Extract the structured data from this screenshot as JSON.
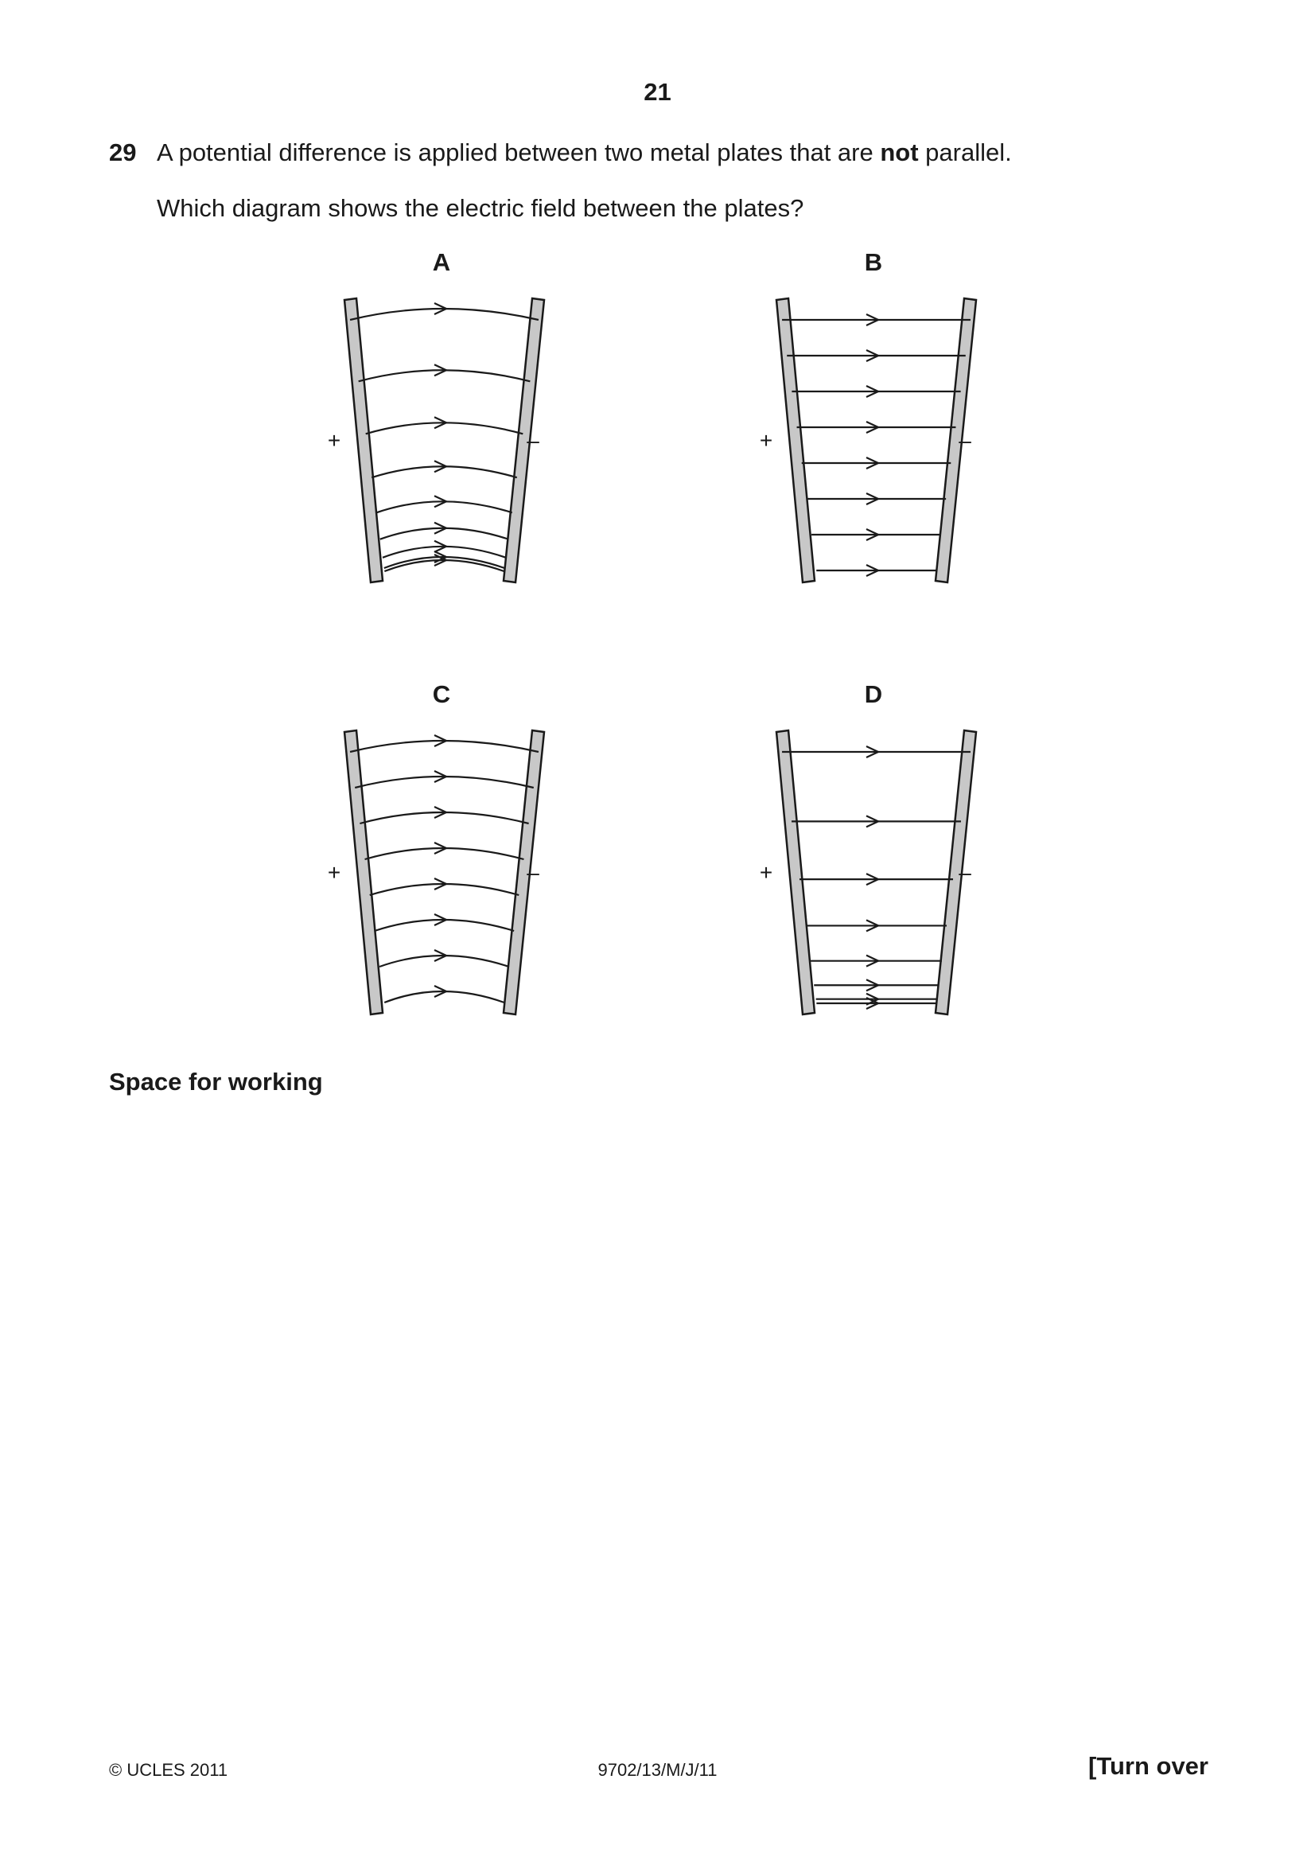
{
  "page_number": "21",
  "question": {
    "number": "29",
    "text_before": "A potential difference is applied between two metal plates that are ",
    "text_bold": "not",
    "text_after": " parallel.",
    "prompt": "Which diagram shows the electric field between the plates?"
  },
  "diagrams": [
    {
      "label": "A",
      "plus": "+",
      "minus": "–",
      "line_style": "curved",
      "spacing": "closer-at-bottom",
      "line_count": 9
    },
    {
      "label": "B",
      "plus": "+",
      "minus": "–",
      "line_style": "straight",
      "spacing": "even",
      "line_count": 8
    },
    {
      "label": "C",
      "plus": "+",
      "minus": "–",
      "line_style": "curved",
      "spacing": "even",
      "line_count": 8
    },
    {
      "label": "D",
      "plus": "+",
      "minus": "–",
      "line_style": "straight",
      "spacing": "closer-at-bottom",
      "line_count": 8
    }
  ],
  "working_label": "Space for working",
  "footer": {
    "copyright": "© UCLES 2011",
    "code": "9702/13/M/J/11",
    "turn_over": "[Turn over"
  },
  "colors": {
    "plate_fill": "#c8c8c8",
    "ink": "#1a1a1a"
  }
}
